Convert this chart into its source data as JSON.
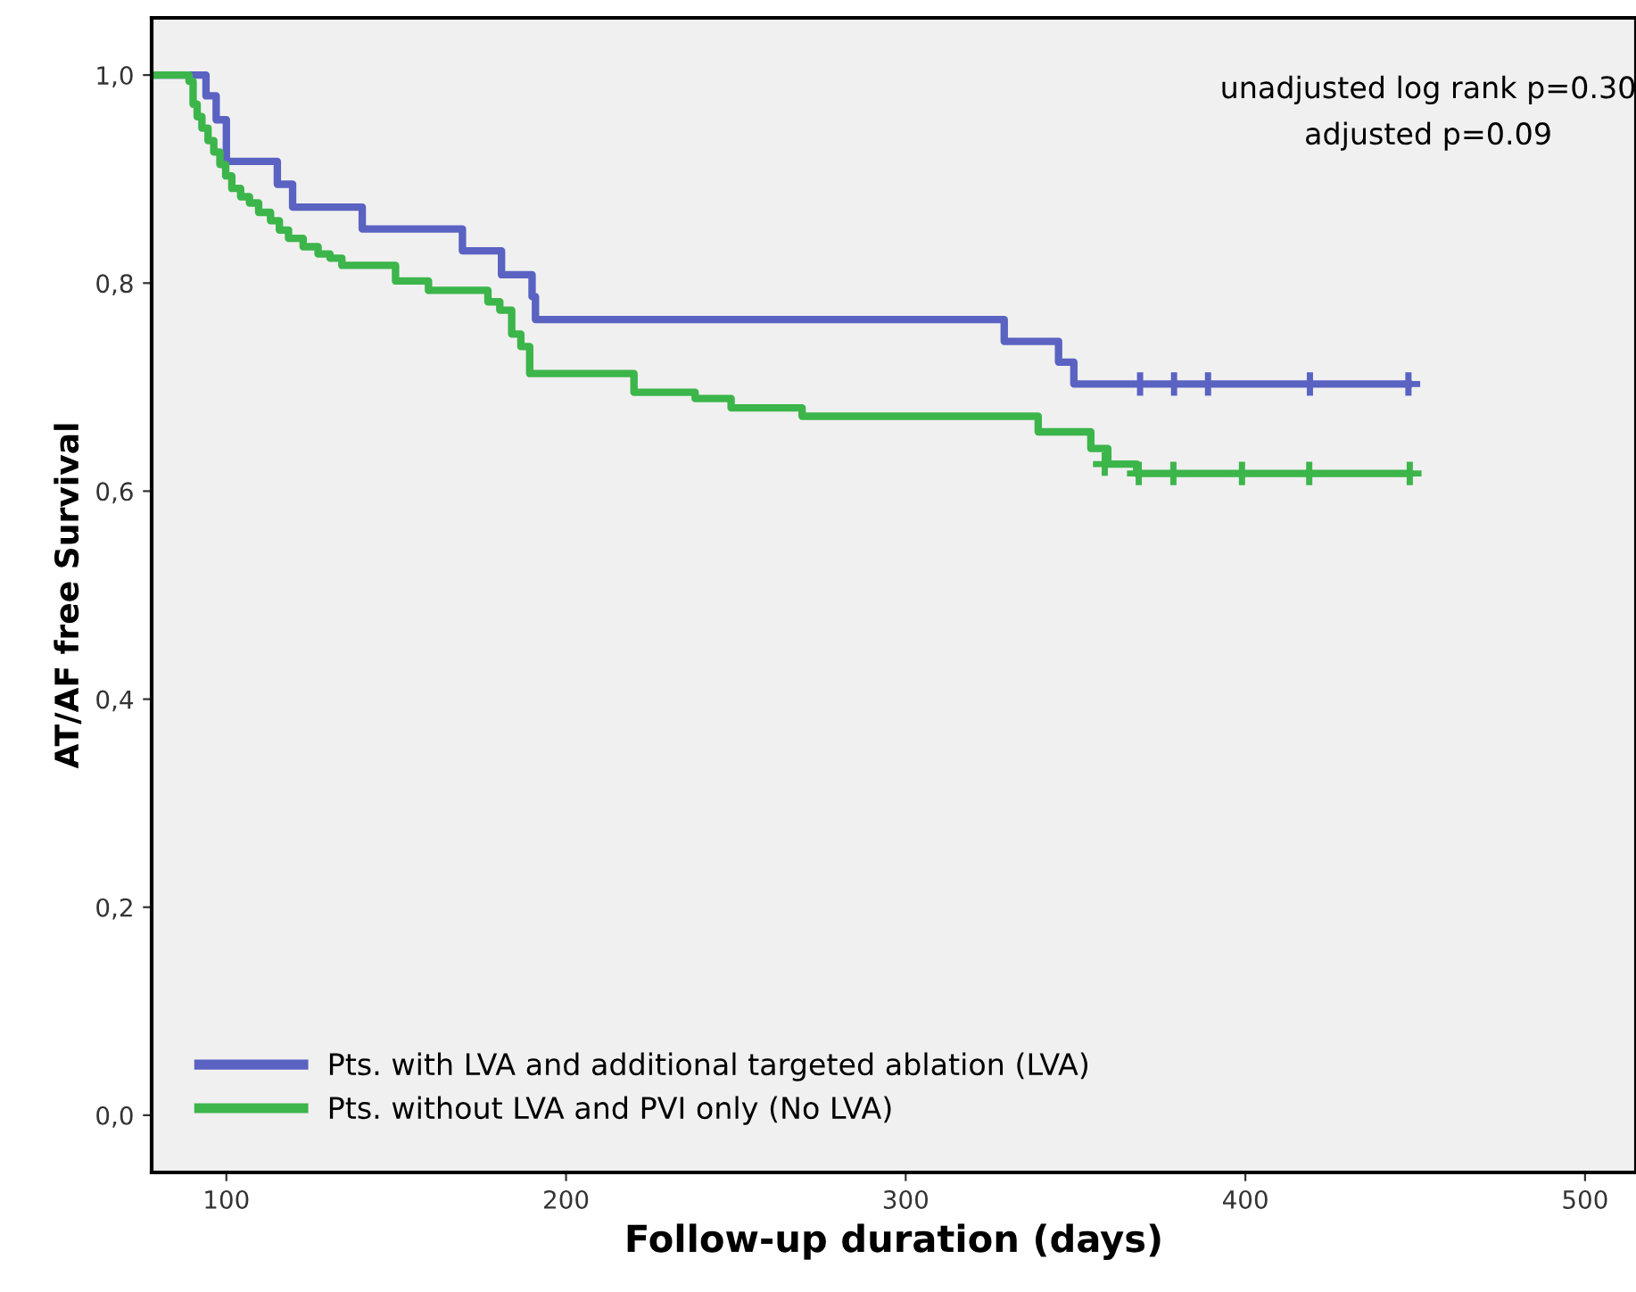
{
  "chart_data": {
    "type": "step",
    "xlabel": "Follow-up duration (days)",
    "ylabel": "AT/AF free Survival",
    "xlim": [
      78,
      515
    ],
    "xticks": [
      100,
      200,
      300,
      400,
      500
    ],
    "ylim": [
      -0.055,
      1.055
    ],
    "yticks": [
      {
        "value": 0,
        "label": "0,0"
      },
      {
        "value": 0.2,
        "label": "0,2"
      },
      {
        "value": 0.4,
        "label": "0,4"
      },
      {
        "value": 0.6,
        "label": "0,6"
      },
      {
        "value": 0.8,
        "label": "0,8"
      },
      {
        "value": 1,
        "label": "1,0"
      }
    ],
    "grid": false,
    "legend": "bottom left",
    "line_style": "solid",
    "annotations": [
      "unadjusted log rank p=0.30",
      "adjusted p=0.09"
    ],
    "series": [
      {
        "name": "Pts. with LVA and additional targeted ablation (LVA)",
        "color": "#5a62c2",
        "x": [
          78,
          94,
          97,
          100,
          115,
          119.5,
          140,
          169.5,
          181,
          190,
          191,
          329,
          345,
          349.5,
          448
        ],
        "values": [
          1.0,
          0.98,
          0.957,
          0.917,
          0.895,
          0.873,
          0.852,
          0.831,
          0.808,
          0.787,
          0.765,
          0.744,
          0.724,
          0.703,
          0.703
        ]
      },
      {
        "name": "Pts. without LVA and PVI only (No LVA)",
        "color": "#3cb54a",
        "x": [
          78,
          89,
          90.2,
          91.4,
          92.8,
          94.6,
          96.3,
          98.1,
          99.8,
          101.6,
          104.2,
          106.8,
          109.5,
          113,
          115.6,
          118.3,
          122.6,
          127,
          130.5,
          134,
          149.8,
          159.5,
          177,
          180.5,
          184,
          186.7,
          189.3,
          191,
          220,
          238,
          248.6,
          269.5,
          339,
          354.5,
          359.5,
          368,
          448
        ],
        "values": [
          1.0,
          0.994,
          0.972,
          0.96,
          0.949,
          0.937,
          0.926,
          0.914,
          0.903,
          0.891,
          0.883,
          0.877,
          0.868,
          0.86,
          0.851,
          0.843,
          0.835,
          0.828,
          0.824,
          0.817,
          0.802,
          0.793,
          0.782,
          0.774,
          0.751,
          0.739,
          0.713,
          0.713,
          0.695,
          0.689,
          0.68,
          0.672,
          0.657,
          0.641,
          0.626,
          0.617,
          0.617
        ]
      },
      {
        "type": "scatter",
        "marker": "cross",
        "color": "#5a62c2",
        "x": [
          369,
          379,
          389,
          419,
          448
        ],
        "values": [
          0.703,
          0.703,
          0.703,
          0.703,
          0.703
        ]
      },
      {
        "type": "scatter",
        "marker": "cross",
        "color": "#3cb54a",
        "x": [
          358.6,
          368.6,
          378.8,
          399,
          418.8,
          448.4
        ],
        "values": [
          0.626,
          0.617,
          0.617,
          0.617,
          0.617,
          0.617
        ]
      }
    ]
  }
}
